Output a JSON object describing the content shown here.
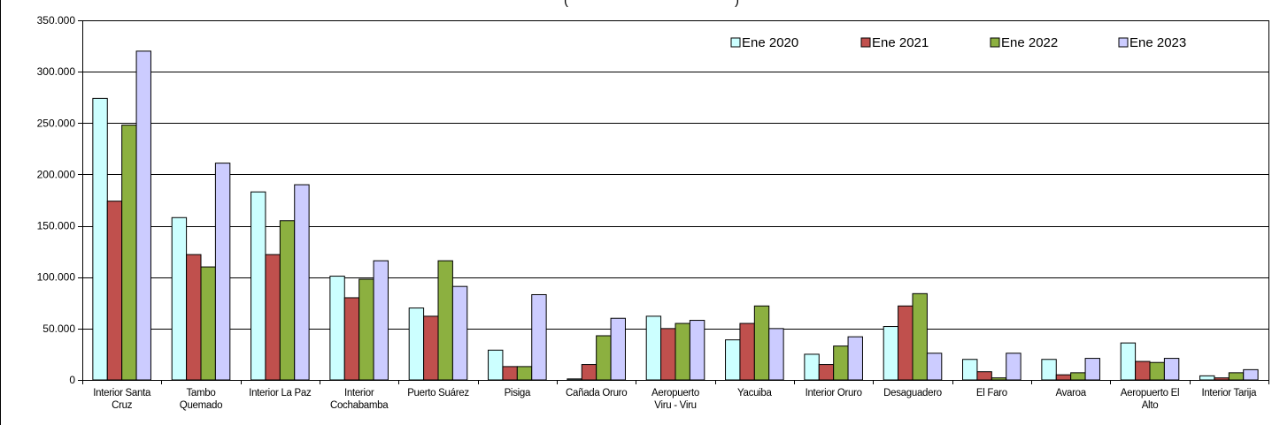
{
  "chart_data": {
    "type": "bar",
    "title_fragment": "(",
    "title_fragment_end": ")",
    "xlabel": "",
    "ylabel": "",
    "ylim": [
      0,
      350000
    ],
    "yticks": [
      0,
      50000,
      100000,
      150000,
      200000,
      250000,
      300000,
      350000
    ],
    "ytick_labels": [
      "0",
      "50.000",
      "100.000",
      "150.000",
      "200.000",
      "250.000",
      "300.000",
      "350.000"
    ],
    "grid": true,
    "legend_position": "top-right",
    "categories": [
      "Interior Santa Cruz",
      "Tambo Quemado",
      "Interior La Paz",
      "Interior Cochabamba",
      "Puerto Suárez",
      "Pisiga",
      "Cañada Oruro",
      "Aeropuerto Viru - Viru",
      "Yacuiba",
      "Interior Oruro",
      "Desaguadero",
      "El Faro",
      "Avaroa",
      "Aeropuerto El Alto",
      "Interior Tarija"
    ],
    "category_label_lines": [
      [
        "Interior Santa",
        "Cruz"
      ],
      [
        "Tambo",
        "Quemado"
      ],
      [
        "Interior La Paz"
      ],
      [
        "Interior",
        "Cochabamba"
      ],
      [
        "Puerto Suárez"
      ],
      [
        "Pisiga"
      ],
      [
        "Cañada Oruro"
      ],
      [
        "Aeropuerto",
        "Viru - Viru"
      ],
      [
        "Yacuiba"
      ],
      [
        "Interior Oruro"
      ],
      [
        "Desaguadero"
      ],
      [
        "El Faro"
      ],
      [
        "Avaroa"
      ],
      [
        "Aeropuerto El",
        "Alto"
      ],
      [
        "Interior Tarija"
      ]
    ],
    "series": [
      {
        "name": "Ene 2020",
        "color": "#CCFFFF",
        "values": [
          274000,
          158000,
          183000,
          101000,
          70000,
          29000,
          1000,
          62000,
          39000,
          25000,
          52000,
          20000,
          20000,
          36000,
          4000
        ]
      },
      {
        "name": "Ene 2021",
        "color": "#C0504D",
        "values": [
          174000,
          122000,
          122000,
          80000,
          62000,
          13000,
          15000,
          50000,
          55000,
          15000,
          72000,
          8000,
          5000,
          18000,
          2000
        ]
      },
      {
        "name": "Ene 2022",
        "color": "#8CB040",
        "values": [
          248000,
          110000,
          155000,
          98000,
          116000,
          13000,
          43000,
          55000,
          72000,
          33000,
          84000,
          2000,
          7000,
          17000,
          7000
        ]
      },
      {
        "name": "Ene 2023",
        "color": "#CCCCFF",
        "values": [
          320000,
          211000,
          190000,
          116000,
          91000,
          83000,
          60000,
          58000,
          50000,
          42000,
          26000,
          26000,
          21000,
          21000,
          10000
        ]
      }
    ]
  }
}
